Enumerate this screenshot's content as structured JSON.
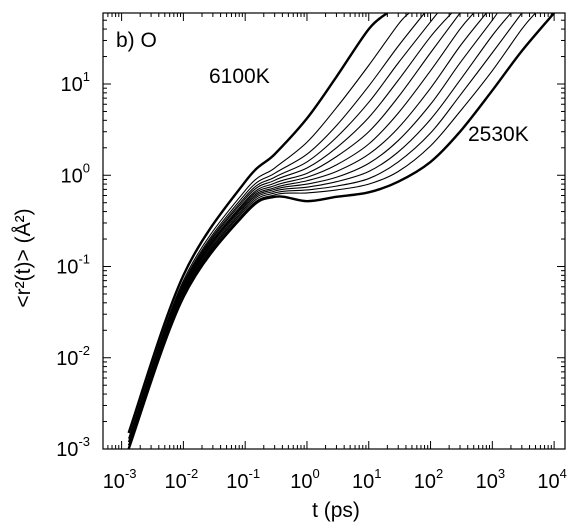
{
  "chart_data": {
    "type": "line",
    "panel_label": "b) O",
    "xlabel": "t (ps)",
    "ylabel": "<r²(t)> (Å²)",
    "xscale": "log",
    "yscale": "log",
    "xlim": [
      0.0005,
      15000
    ],
    "ylim": [
      0.001,
      60
    ],
    "x_ticks": [
      {
        "base": "10",
        "exp": "-3"
      },
      {
        "base": "10",
        "exp": "-2"
      },
      {
        "base": "10",
        "exp": "-1"
      },
      {
        "base": "10",
        "exp": "0"
      },
      {
        "base": "10",
        "exp": "1"
      },
      {
        "base": "10",
        "exp": "2"
      },
      {
        "base": "10",
        "exp": "3"
      },
      {
        "base": "10",
        "exp": "4"
      }
    ],
    "y_ticks": [
      {
        "base": "10",
        "exp": "-3"
      },
      {
        "base": "10",
        "exp": "-2"
      },
      {
        "base": "10",
        "exp": "-1"
      },
      {
        "base": "10",
        "exp": "0"
      },
      {
        "base": "10",
        "exp": "1"
      }
    ],
    "annotations": [
      "6100K",
      "2530K"
    ],
    "grid": false,
    "series": [
      {
        "bold": true,
        "x": [
          0.0013,
          0.01,
          0.1,
          0.3,
          1,
          3,
          10,
          20
        ],
        "y": [
          0.0015,
          0.08,
          0.85,
          1.7,
          4.2,
          12,
          40,
          60
        ]
      },
      {
        "bold": false,
        "x": [
          0.0013,
          0.01,
          0.1,
          0.3,
          1,
          3,
          10,
          30,
          45
        ],
        "y": [
          0.0013,
          0.07,
          0.68,
          1.2,
          2.3,
          5.5,
          16,
          45,
          60
        ]
      },
      {
        "bold": false,
        "x": [
          0.0013,
          0.01,
          0.1,
          0.3,
          1,
          3,
          10,
          30,
          80
        ],
        "y": [
          0.0013,
          0.066,
          0.62,
          1.05,
          1.7,
          3.5,
          9.5,
          26,
          60
        ]
      },
      {
        "bold": false,
        "x": [
          0.0013,
          0.01,
          0.1,
          0.3,
          1,
          3,
          10,
          30,
          100,
          130
        ],
        "y": [
          0.0012,
          0.063,
          0.58,
          0.95,
          1.4,
          2.6,
          6.3,
          17,
          48,
          60
        ]
      },
      {
        "bold": false,
        "x": [
          0.0013,
          0.01,
          0.1,
          0.3,
          1,
          3,
          10,
          30,
          100,
          220
        ],
        "y": [
          0.0012,
          0.061,
          0.55,
          0.88,
          1.2,
          2.0,
          4.3,
          11,
          33,
          60
        ]
      },
      {
        "bold": false,
        "x": [
          0.0013,
          0.01,
          0.1,
          0.3,
          1,
          3,
          10,
          30,
          100,
          300
        ],
        "y": [
          0.0012,
          0.059,
          0.52,
          0.82,
          1.05,
          1.6,
          3.0,
          7.2,
          22,
          60
        ]
      },
      {
        "bold": false,
        "x": [
          0.0013,
          0.01,
          0.1,
          0.3,
          1,
          3,
          10,
          30,
          100,
          300,
          500
        ],
        "y": [
          0.0012,
          0.057,
          0.5,
          0.77,
          0.95,
          1.3,
          2.2,
          4.8,
          14,
          40,
          60
        ]
      },
      {
        "bold": false,
        "x": [
          0.0013,
          0.01,
          0.1,
          0.3,
          1,
          3,
          10,
          30,
          100,
          300,
          800
        ],
        "y": [
          0.0011,
          0.055,
          0.48,
          0.73,
          0.87,
          1.1,
          1.7,
          3.3,
          9.0,
          26,
          60
        ]
      },
      {
        "bold": false,
        "x": [
          0.0013,
          0.01,
          0.1,
          0.3,
          1,
          3,
          10,
          30,
          100,
          300,
          1000,
          1200
        ],
        "y": [
          0.0011,
          0.053,
          0.46,
          0.7,
          0.8,
          0.95,
          1.35,
          2.4,
          6.0,
          17,
          50,
          60
        ]
      },
      {
        "bold": false,
        "x": [
          0.0013,
          0.01,
          0.1,
          0.3,
          1,
          3,
          10,
          30,
          100,
          300,
          1000,
          2000
        ],
        "y": [
          0.0011,
          0.051,
          0.44,
          0.67,
          0.74,
          0.85,
          1.1,
          1.8,
          4.1,
          11,
          34,
          60
        ]
      },
      {
        "bold": false,
        "x": [
          0.0013,
          0.01,
          0.1,
          0.3,
          1,
          3,
          10,
          30,
          100,
          300,
          1000,
          3000
        ],
        "y": [
          0.0011,
          0.05,
          0.42,
          0.64,
          0.69,
          0.76,
          0.92,
          1.4,
          2.9,
          7.5,
          22,
          60
        ]
      },
      {
        "bold": false,
        "x": [
          0.0013,
          0.01,
          0.1,
          0.3,
          1,
          3,
          10,
          30,
          100,
          300,
          1000,
          3000,
          5000
        ],
        "y": [
          0.001,
          0.048,
          0.4,
          0.61,
          0.64,
          0.69,
          0.8,
          1.1,
          2.1,
          5.0,
          14,
          40,
          60
        ]
      },
      {
        "bold": true,
        "x": [
          0.0013,
          0.01,
          0.1,
          0.3,
          1,
          3,
          10,
          30,
          100,
          300,
          1000,
          3000,
          10000
        ],
        "y": [
          0.001,
          0.046,
          0.38,
          0.58,
          0.52,
          0.58,
          0.65,
          0.85,
          1.4,
          3.0,
          8.5,
          23,
          60
        ]
      }
    ]
  }
}
